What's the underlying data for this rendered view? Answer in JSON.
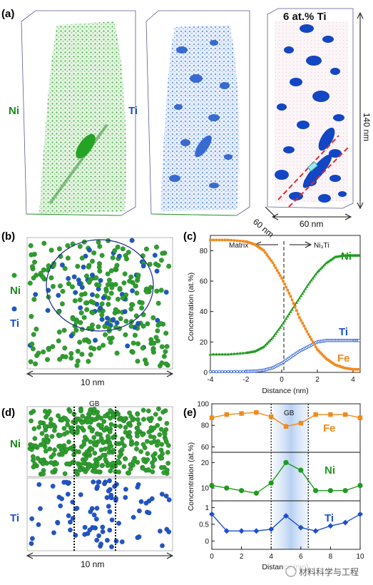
{
  "panel_labels": {
    "a": "(a)",
    "b": "(b)",
    "c": "(c)",
    "d": "(d)",
    "e": "(e)"
  },
  "panel_a": {
    "label_ni": "Ni",
    "label_ti": "Ti",
    "iso_title": "6 at.% Ti",
    "dim_height": "140 nm",
    "dim_width": "60 nm",
    "dim_depth": "60 nm",
    "colors": {
      "ni": "#2e9e2e",
      "ti": "#1f55c8",
      "iso": "#1246c4",
      "cube": "#4a4a9a"
    }
  },
  "panel_b": {
    "legend_ni": "Ni",
    "legend_ti": "Ti",
    "scale": "10 nm"
  },
  "panel_d": {
    "gb": "GB",
    "legend_ni": "Ni",
    "legend_ti": "Ti",
    "scale": "10 nm"
  },
  "chart_data": [
    {
      "type": "line",
      "xlabel": "Distance (nm)",
      "ylabel": "Concentration (at.%)",
      "xlim": [
        -4,
        4.4
      ],
      "ylim": [
        0,
        90
      ],
      "xticks": [
        -4,
        -2,
        0,
        2,
        4
      ],
      "yticks": [
        0,
        20,
        40,
        60,
        80
      ],
      "annotations": {
        "matrix": "Matrix",
        "ni3ti": "Ni₃Ti"
      },
      "series": [
        {
          "name": "Ni",
          "color": "#1f9a1f",
          "x": [
            -4,
            -3,
            -2,
            -1.5,
            -1,
            -0.5,
            0,
            0.5,
            1,
            1.5,
            2,
            2.5,
            3,
            3.5,
            4,
            4.4
          ],
          "y": [
            12,
            12,
            13,
            14,
            17,
            23,
            31,
            40,
            49,
            58,
            66,
            72,
            76,
            77,
            77,
            77
          ]
        },
        {
          "name": "Ti",
          "color": "#1d4fd1",
          "x": [
            -4,
            -3,
            -2,
            -1.5,
            -1,
            -0.5,
            0,
            0.5,
            1,
            1.5,
            2,
            2.5,
            3,
            3.5,
            4,
            4.4
          ],
          "y": [
            0.5,
            0.5,
            0.6,
            0.8,
            1.5,
            3,
            6,
            10,
            14,
            17,
            20,
            21,
            21,
            21,
            21,
            21
          ]
        },
        {
          "name": "Fe",
          "color": "#f08a1c",
          "x": [
            -4,
            -3,
            -2,
            -1.5,
            -1,
            -0.5,
            0,
            0.5,
            1,
            1.5,
            2,
            2.5,
            3,
            3.5,
            4,
            4.4
          ],
          "y": [
            87,
            87,
            86,
            84,
            80,
            72,
            62,
            50,
            36,
            25,
            15,
            9,
            5,
            3,
            2,
            2
          ]
        }
      ]
    },
    {
      "type": "line",
      "xlabel": "Distance (nm)",
      "ylabel": "Concentration (at.%)",
      "xlim": [
        0,
        10
      ],
      "xticks": [
        0,
        2,
        4,
        6,
        8,
        10
      ],
      "gb_label": "GB",
      "gb_region": [
        4,
        6.5
      ],
      "series": [
        {
          "name": "Fe",
          "color": "#f08a1c",
          "marker": "square",
          "yticks": [
            60,
            80,
            100
          ],
          "ylim": [
            55,
            100
          ],
          "x": [
            0,
            1,
            2,
            3,
            4,
            5,
            6,
            7,
            8,
            9,
            10
          ],
          "y": [
            87,
            90,
            91,
            92,
            88,
            79,
            82,
            90,
            90,
            90,
            87
          ]
        },
        {
          "name": "Ni",
          "color": "#1f9a1f",
          "marker": "circle",
          "yticks": [
            10,
            20
          ],
          "ylim": [
            5,
            24
          ],
          "x": [
            0,
            1,
            2,
            3,
            4,
            5,
            6,
            7,
            8,
            9,
            10
          ],
          "y": [
            11,
            10,
            9,
            8,
            12,
            20,
            17,
            9,
            9,
            9,
            11
          ]
        },
        {
          "name": "Ti",
          "color": "#1d4fd1",
          "marker": "diamond",
          "yticks": [
            0,
            0.5,
            1
          ],
          "ylim": [
            -0.25,
            1.2
          ],
          "x": [
            0,
            1,
            2,
            3,
            4,
            5,
            6,
            7,
            8,
            9,
            10
          ],
          "y": [
            0.8,
            0.3,
            0.3,
            0.3,
            0.35,
            0.75,
            0.4,
            0.3,
            0.45,
            0.55,
            0.8
          ]
        }
      ]
    }
  ],
  "watermark": "材料科学与工程"
}
